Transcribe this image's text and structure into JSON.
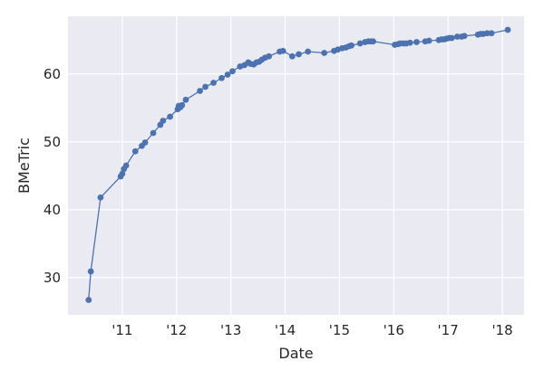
{
  "chart_data": {
    "type": "line",
    "title": "",
    "xlabel": "Date",
    "ylabel": "BMeTric",
    "x_unit": "year",
    "xlim": [
      2010.0,
      2018.4
    ],
    "ylim": [
      24.5,
      68.5
    ],
    "x_ticks": [
      {
        "value": 2011,
        "label": "'11"
      },
      {
        "value": 2012,
        "label": "'12"
      },
      {
        "value": 2013,
        "label": "'13"
      },
      {
        "value": 2014,
        "label": "'14"
      },
      {
        "value": 2015,
        "label": "'15"
      },
      {
        "value": 2016,
        "label": "'16"
      },
      {
        "value": 2017,
        "label": "'17"
      },
      {
        "value": 2018,
        "label": "'18"
      }
    ],
    "y_ticks": [
      30,
      40,
      50,
      60
    ],
    "grid": true,
    "background": "#eaeaf2",
    "grid_color": "#ffffff",
    "series_color": "#4c72b0",
    "series": [
      {
        "points": [
          [
            2010.38,
            26.7
          ],
          [
            2010.42,
            30.9
          ],
          [
            2010.6,
            41.8
          ],
          [
            2010.97,
            44.9
          ],
          [
            2011.0,
            45.3
          ],
          [
            2011.03,
            46.0
          ],
          [
            2011.07,
            46.5
          ],
          [
            2011.24,
            48.6
          ],
          [
            2011.36,
            49.4
          ],
          [
            2011.42,
            49.9
          ],
          [
            2011.57,
            51.3
          ],
          [
            2011.7,
            52.5
          ],
          [
            2011.75,
            53.1
          ],
          [
            2011.88,
            53.7
          ],
          [
            2012.02,
            54.8
          ],
          [
            2012.04,
            55.3
          ],
          [
            2012.07,
            55.1
          ],
          [
            2012.1,
            55.4
          ],
          [
            2012.17,
            56.2
          ],
          [
            2012.43,
            57.5
          ],
          [
            2012.53,
            58.1
          ],
          [
            2012.68,
            58.7
          ],
          [
            2012.83,
            59.4
          ],
          [
            2012.94,
            59.9
          ],
          [
            2013.03,
            60.4
          ],
          [
            2013.17,
            61.1
          ],
          [
            2013.25,
            61.3
          ],
          [
            2013.32,
            61.7
          ],
          [
            2013.36,
            61.5
          ],
          [
            2013.42,
            61.4
          ],
          [
            2013.47,
            61.7
          ],
          [
            2013.52,
            61.8
          ],
          [
            2013.57,
            62.1
          ],
          [
            2013.63,
            62.4
          ],
          [
            2013.7,
            62.6
          ],
          [
            2013.9,
            63.3
          ],
          [
            2013.96,
            63.4
          ],
          [
            2014.13,
            62.6
          ],
          [
            2014.25,
            62.9
          ],
          [
            2014.42,
            63.3
          ],
          [
            2014.72,
            63.1
          ],
          [
            2014.9,
            63.4
          ],
          [
            2014.97,
            63.6
          ],
          [
            2015.05,
            63.8
          ],
          [
            2015.12,
            63.9
          ],
          [
            2015.18,
            64.1
          ],
          [
            2015.22,
            64.2
          ],
          [
            2015.38,
            64.5
          ],
          [
            2015.47,
            64.7
          ],
          [
            2015.53,
            64.8
          ],
          [
            2015.58,
            64.8
          ],
          [
            2015.62,
            64.8
          ],
          [
            2016.02,
            64.3
          ],
          [
            2016.08,
            64.4
          ],
          [
            2016.12,
            64.5
          ],
          [
            2016.18,
            64.5
          ],
          [
            2016.23,
            64.5
          ],
          [
            2016.3,
            64.6
          ],
          [
            2016.42,
            64.7
          ],
          [
            2016.58,
            64.8
          ],
          [
            2016.65,
            64.9
          ],
          [
            2016.83,
            65.0
          ],
          [
            2016.88,
            65.1
          ],
          [
            2016.93,
            65.1
          ],
          [
            2016.97,
            65.2
          ],
          [
            2017.02,
            65.3
          ],
          [
            2017.07,
            65.3
          ],
          [
            2017.17,
            65.5
          ],
          [
            2017.25,
            65.5
          ],
          [
            2017.3,
            65.6
          ],
          [
            2017.55,
            65.8
          ],
          [
            2017.6,
            65.9
          ],
          [
            2017.65,
            65.9
          ],
          [
            2017.72,
            66.0
          ],
          [
            2017.8,
            66.0
          ],
          [
            2018.1,
            66.5
          ]
        ]
      }
    ]
  }
}
